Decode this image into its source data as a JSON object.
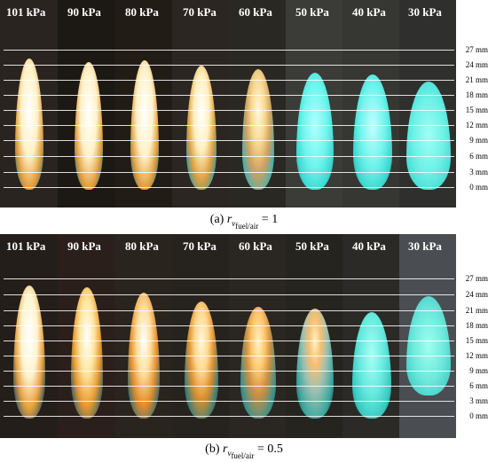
{
  "panels": [
    {
      "caption_prefix": "(a)",
      "caption_ratio": "= 1",
      "pressures": [
        "101 kPa",
        "90 kPa",
        "80 kPa",
        "70 kPa",
        "60 kPa",
        "50 kPa",
        "40 kPa",
        "30 kPa"
      ],
      "scale": [
        "27 mm",
        "24 mm",
        "21 mm",
        "18 mm",
        "15 mm",
        "12 mm",
        "9 mm",
        "6 mm",
        "3 mm",
        "0 mm"
      ]
    },
    {
      "caption_prefix": "(b)",
      "caption_ratio": "= 0.5",
      "pressures": [
        "101 kPa",
        "90 kPa",
        "80 kPa",
        "70 kPa",
        "60 kPa",
        "50 kPa",
        "40 kPa",
        "30 kPa"
      ],
      "scale": [
        "27 mm",
        "24 mm",
        "21 mm",
        "18 mm",
        "15 mm",
        "12 mm",
        "9 mm",
        "6 mm",
        "3 mm",
        "0 mm"
      ]
    }
  ],
  "caption_symbol": "r",
  "caption_sub1": "v",
  "caption_sub2": "fuel/air",
  "colors": {
    "flame_white": "#fff8e6",
    "flame_orange": "#f0a030",
    "flame_blue": "#3ff0e0",
    "bg_dark": "#1a1612"
  }
}
